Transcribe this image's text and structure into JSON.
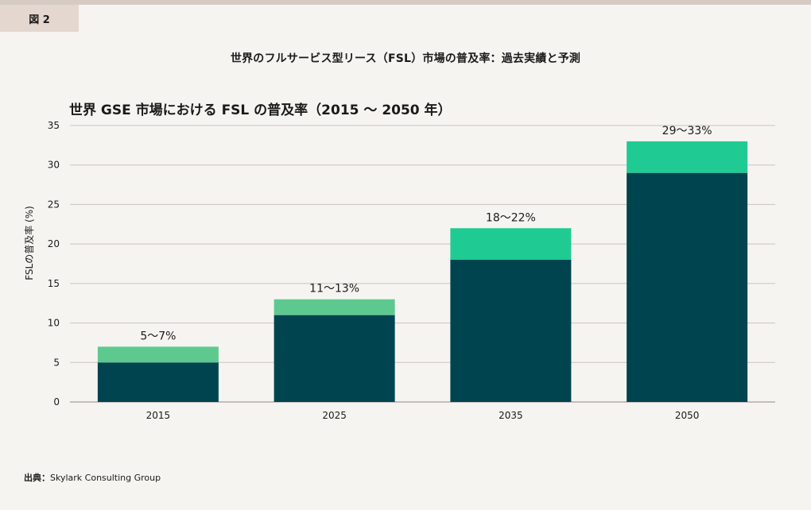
{
  "figure_label": "図 2",
  "main_title": "世界のフルサービス型リース（FSL）市場の普及率：過去実績と予測",
  "source": {
    "label": "出典：",
    "text": "Skylark Consulting Group"
  },
  "colors": {
    "base": "#004450",
    "range_light": "#5ec98f",
    "range_bright": "#20cb93",
    "grid": "#c9c4bf"
  },
  "chart_data": {
    "type": "bar",
    "stacked": true,
    "title": "世界 GSE 市場における FSL の普及率（2015 〜 2050 年）",
    "xlabel": "",
    "ylabel": "FSLの普及率 (%)",
    "ylim": [
      0,
      35
    ],
    "yticks": [
      0,
      5,
      10,
      15,
      20,
      25,
      30,
      35
    ],
    "grid": true,
    "categories": [
      "2015",
      "2025",
      "2035",
      "2050"
    ],
    "series": [
      {
        "values": [
          5,
          11,
          18,
          29
        ]
      },
      {
        "values": [
          2,
          2,
          4,
          4
        ]
      }
    ],
    "data_labels": [
      "5〜7%",
      "11〜13%",
      "18〜22%",
      "29〜33%"
    ]
  }
}
